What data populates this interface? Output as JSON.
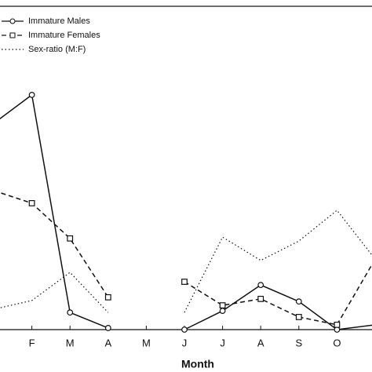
{
  "chart_data": {
    "type": "line",
    "x_label": "Month",
    "categories": [
      null,
      "F",
      "M",
      "A",
      "M",
      "J",
      "J",
      "A",
      "S",
      "O",
      null
    ],
    "series": [
      {
        "name": "Immature Males",
        "color": "#111111",
        "dash": "solid",
        "marker": "circle",
        "values": [
          63.8,
          72.6,
          5.3,
          0.5,
          null,
          0,
          5.8,
          13.8,
          8.7,
          0,
          1.5
        ]
      },
      {
        "name": "Immature Females",
        "color": "#111111",
        "dash": "dashed",
        "marker": "square",
        "values": [
          43,
          39.1,
          28.2,
          10,
          null,
          14.8,
          7.5,
          9.5,
          3.9,
          1.5,
          21.8
        ]
      },
      {
        "name": "Sex-ratio (M:F)",
        "color": "#111111",
        "dash": "dotted",
        "marker": "none",
        "values": [
          6.3,
          9,
          17.7,
          5.3,
          null,
          5.3,
          28.6,
          21.4,
          27.4,
          36.9,
          21.8
        ]
      }
    ],
    "ylim": [
      0,
      100
    ],
    "legend": "top-left"
  }
}
